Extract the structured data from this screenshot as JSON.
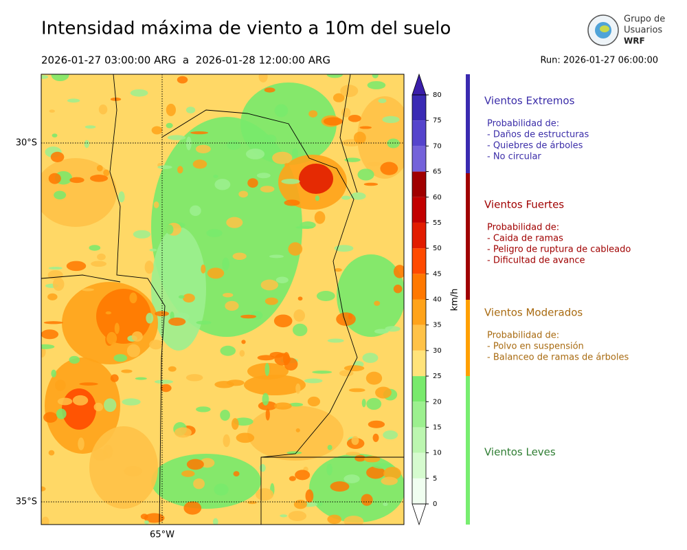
{
  "title": "Intensidad máxima de viento a 10m del suelo",
  "period": "2026-01-27 03:00:00 ARG  a  2026-01-28 12:00:00 ARG",
  "run": "Run: 2026-01-27 06:00:00",
  "logo": {
    "line1": "Grupo de",
    "line2": "Usuarios",
    "line3": "WRF"
  },
  "map": {
    "lat_labels": [
      "30°S",
      "35°S"
    ],
    "lon_labels": [
      "65°W"
    ]
  },
  "colorbar": {
    "label": "km/h",
    "ticks": [
      0,
      5,
      10,
      15,
      20,
      25,
      30,
      35,
      40,
      45,
      50,
      55,
      60,
      65,
      70,
      75,
      80
    ],
    "colors": [
      "#f0fef0",
      "#d6fbcf",
      "#bcf6b0",
      "#9cf08f",
      "#78ea6c",
      "#ffe37a",
      "#ffc247",
      "#ffa31a",
      "#ff7800",
      "#ff4a00",
      "#e21c00",
      "#c20000",
      "#a00000",
      "#7462da",
      "#5544cc",
      "#3a2ab4"
    ],
    "extend_colors": [
      "#ffffff",
      "#3a1eaa"
    ]
  },
  "legend": [
    {
      "title": "Vientos Extremos",
      "color": "#3a2ca8",
      "bar_color": "#3a2ab0",
      "lines": [
        "Probabilidad de:",
        "- Daños de estructuras",
        "- Quiebres de árboles",
        "- No circular"
      ]
    },
    {
      "title": "Vientos Fuertes",
      "color": "#a00000",
      "bar_color": "#a00000",
      "lines": [
        "Probabilidad de:",
        "- Caida de ramas",
        "- Peligro de ruptura de cableado",
        "- Dificultad de avance"
      ]
    },
    {
      "title": "Vientos Moderados",
      "color": "#a86a10",
      "bar_color": "#ffa000",
      "lines": [
        "Probabilidad de:",
        "- Polvo en suspensión",
        "- Balanceo de ramas de árboles"
      ]
    },
    {
      "title": "Vientos Leves",
      "color": "#2e7d32",
      "bar_color": "#78ee70",
      "lines": []
    }
  ]
}
